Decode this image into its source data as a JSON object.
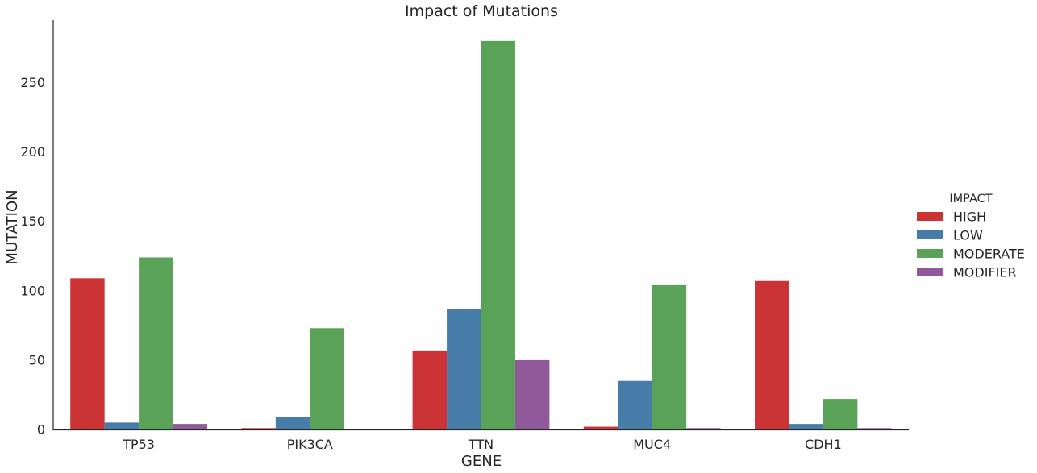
{
  "chart_data": {
    "type": "bar",
    "title": "Impact of Mutations",
    "xlabel": "GENE",
    "ylabel": "MUTATION",
    "ylim": [
      0,
      295
    ],
    "yticks": [
      "0",
      "50",
      "100",
      "150",
      "200",
      "250"
    ],
    "categories": [
      "TP53",
      "PIK3CA",
      "TTN",
      "MUC4",
      "CDH1"
    ],
    "grid": false,
    "legend": {
      "title": "IMPACT",
      "placement": "right"
    },
    "series": [
      {
        "name": "HIGH",
        "color": "#cb3335",
        "values": [
          109,
          1,
          57,
          2,
          107
        ]
      },
      {
        "name": "LOW",
        "color": "#477ca8",
        "values": [
          5,
          9,
          87,
          35,
          4
        ]
      },
      {
        "name": "MODERATE",
        "color": "#59a257",
        "values": [
          124,
          73,
          280,
          104,
          22
        ]
      },
      {
        "name": "MODIFIER",
        "color": "#905999",
        "values": [
          4,
          0,
          50,
          1,
          1
        ]
      }
    ]
  }
}
